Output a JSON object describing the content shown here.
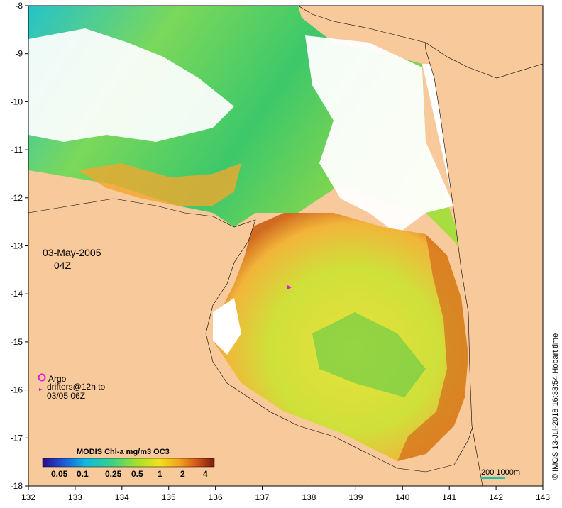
{
  "map": {
    "date": "03-May-2005",
    "time": "04Z",
    "lon_ticks": [
      "132",
      "133",
      "134",
      "135",
      "136",
      "137",
      "138",
      "139",
      "140",
      "141",
      "142",
      "143"
    ],
    "lat_ticks": [
      "-8",
      "-9",
      "-10",
      "-11",
      "-12",
      "-13",
      "-14",
      "-15",
      "-16",
      "-17",
      "-18"
    ],
    "colors": {
      "land": "#f8c99a",
      "cloud": "#ffffff",
      "coast": "#000000",
      "argo_marker": "#e01ad8",
      "scale_bar": "#20c0b0"
    }
  },
  "legend": {
    "argo": "Argo",
    "drifters_line1": "drifters@12h to",
    "drifters_line2": "03/05 06Z"
  },
  "colorbar": {
    "title": "MODIS Chl-a mg/m3 OC3",
    "ticks": [
      "0.05",
      "0.1",
      "0.25",
      "0.5",
      "1",
      "2",
      "4"
    ],
    "colors": [
      "#2a0b8a",
      "#1f56d8",
      "#11b8e0",
      "#36d18a",
      "#a6e02a",
      "#f2e21c",
      "#f2a01c",
      "#d0551a",
      "#7a1a0c"
    ]
  },
  "scale": {
    "label": "200  1000m"
  },
  "credit": "© IMOS 13-Jul-2018 16:33:54 Hobart time"
}
